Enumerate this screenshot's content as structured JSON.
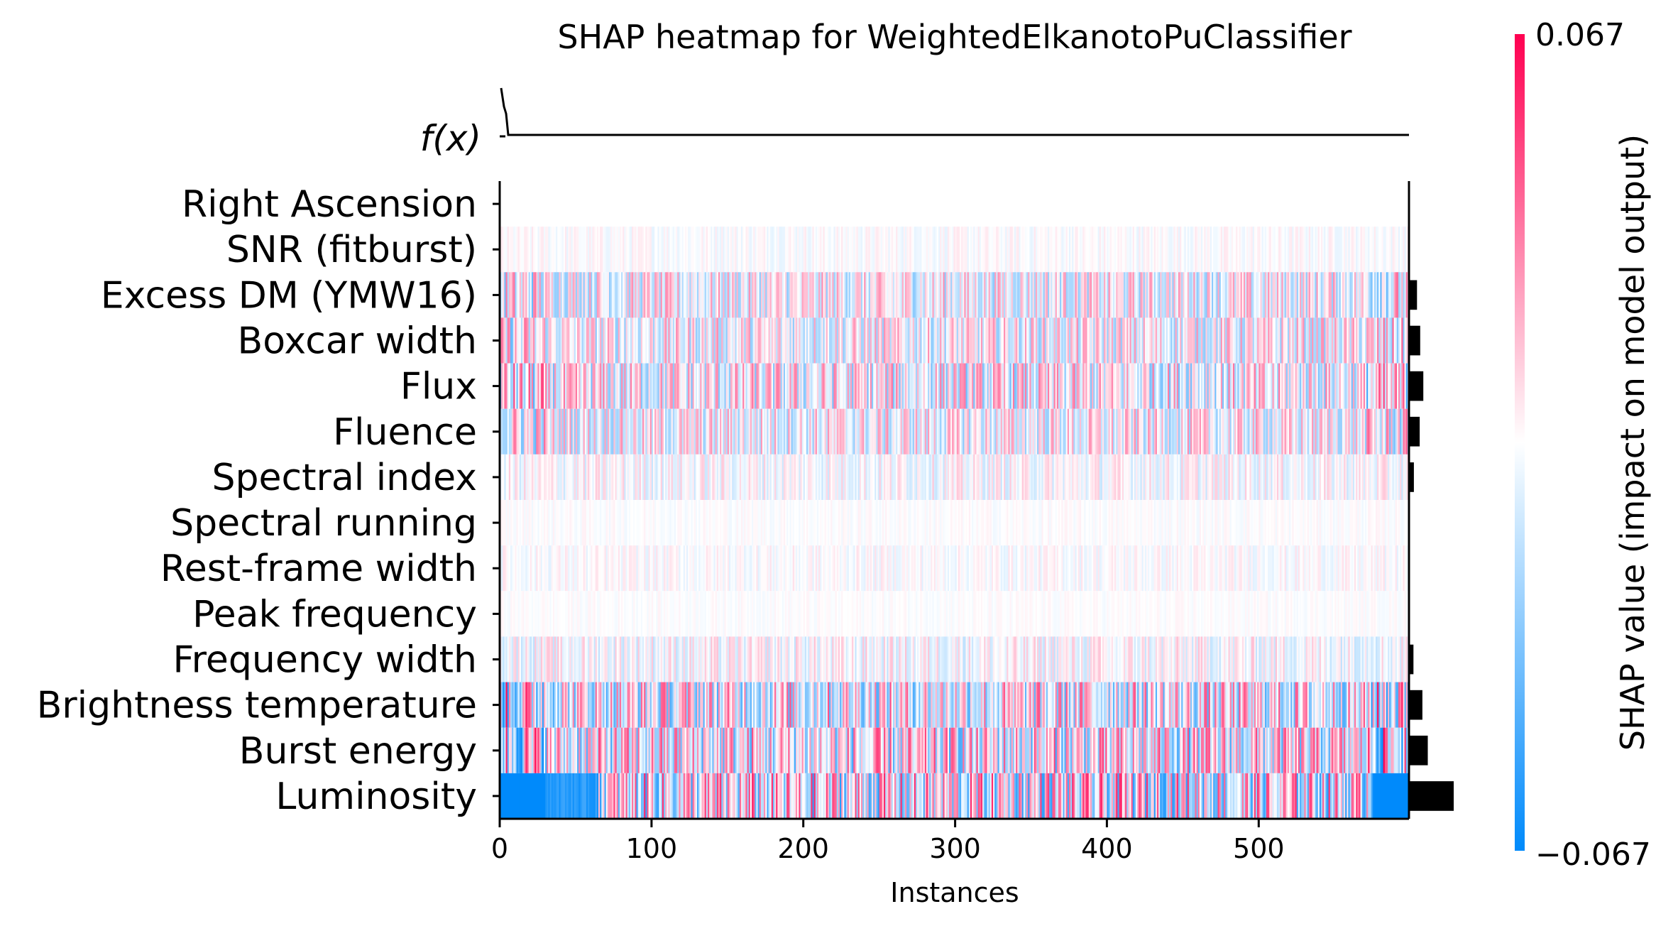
{
  "chart_data": {
    "type": "heatmap",
    "title": "SHAP heatmap for WeightedElkanotoPuClassifier",
    "xlabel": "Instances",
    "ylabel": "",
    "top_panel_label": "f(x)",
    "n_instances": 599,
    "x_ticks": [
      0,
      100,
      200,
      300,
      400,
      500
    ],
    "features": [
      "Right Ascension",
      "SNR (fitburst)",
      "Excess DM (YMW16)",
      "Boxcar width",
      "Flux",
      "Fluence",
      "Spectral index",
      "Spectral running",
      "Rest-frame width",
      "Peak frequency",
      "Frequency width",
      "Brightness temperature",
      "Burst energy",
      "Luminosity"
    ],
    "mean_abs_shap_relative": [
      0.0,
      0.0,
      0.18,
      0.25,
      0.32,
      0.24,
      0.11,
      0.0,
      0.0,
      0.0,
      0.1,
      0.3,
      0.42,
      1.0
    ],
    "feature_intensity": [
      0.0,
      0.1,
      0.45,
      0.45,
      0.55,
      0.45,
      0.22,
      0.06,
      0.12,
      0.05,
      0.25,
      0.7,
      0.75,
      0.85
    ],
    "colorbar": {
      "min": -0.067,
      "max": 0.067,
      "min_label": "−0.067",
      "max_label": "0.067",
      "label": "SHAP value (impact on model output)",
      "low_color": "#008afb",
      "mid_color": "#ffffff",
      "high_color": "#ff0051"
    },
    "legend": "colorbar-right",
    "grid": false
  }
}
